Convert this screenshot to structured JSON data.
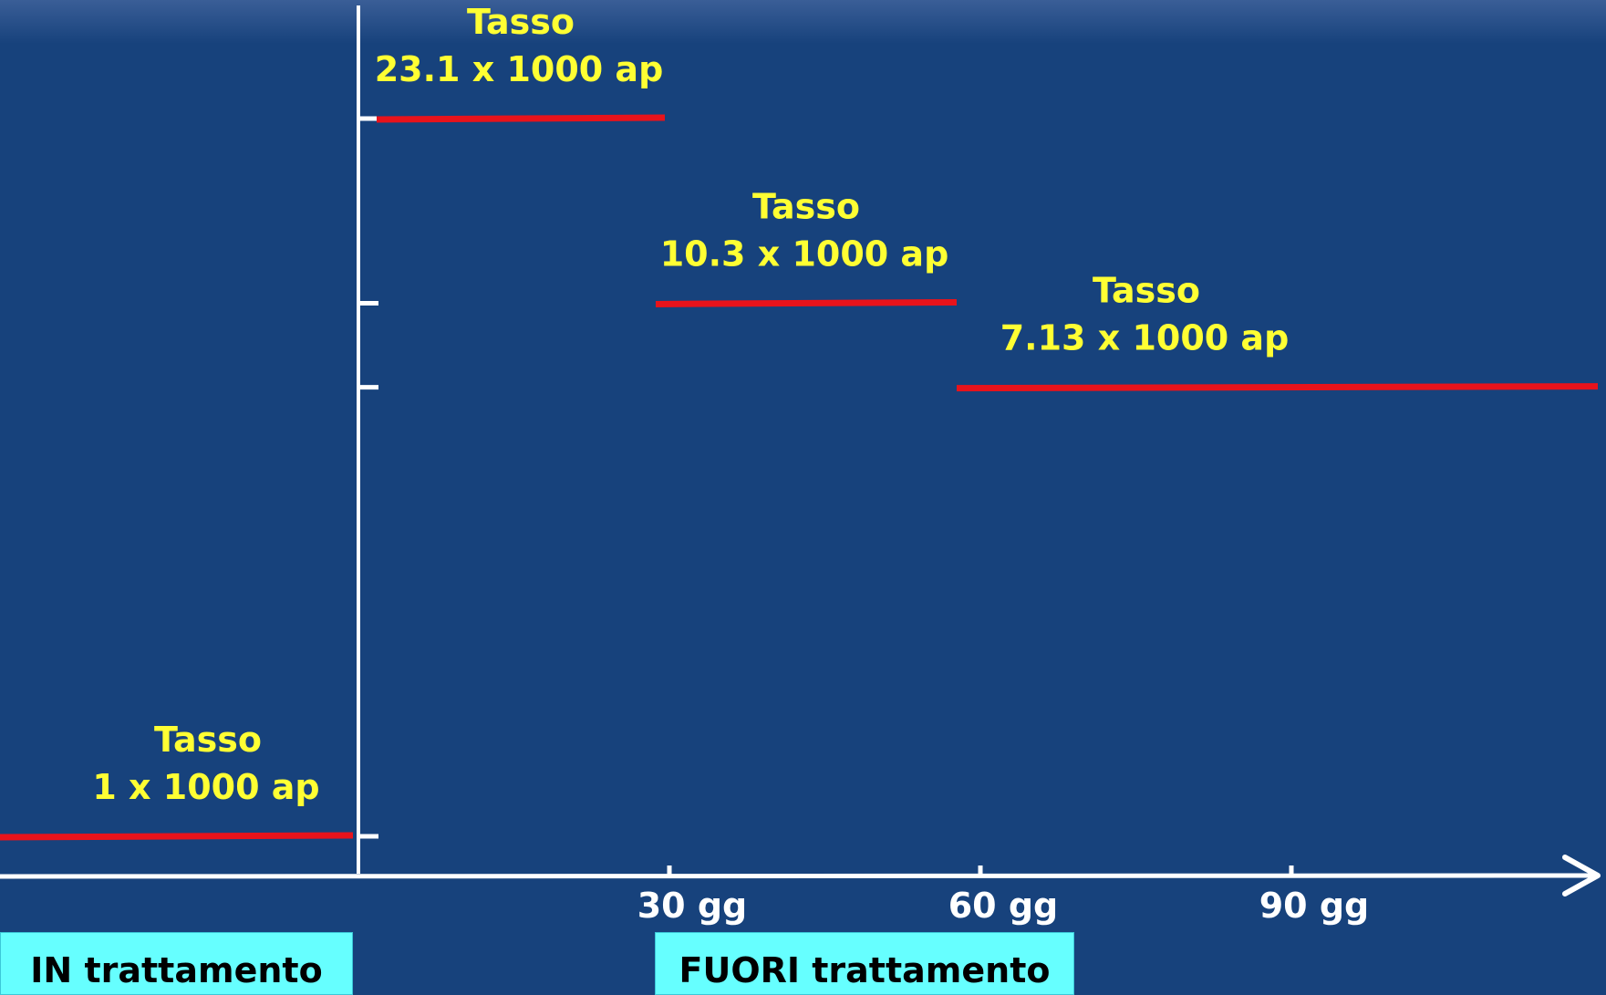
{
  "chart_data": {
    "type": "step",
    "x_unit": "gg",
    "x_ticks": [
      {
        "value": 30,
        "label": "30 gg"
      },
      {
        "value": 60,
        "label": "60 gg"
      },
      {
        "value": 90,
        "label": "90 gg"
      }
    ],
    "rate_unit": "x 1000 ap",
    "segments": [
      {
        "phase": "IN trattamento",
        "x": [
          -35,
          0
        ],
        "rate": 1,
        "label_title": "Tasso",
        "label_value": "1 x 1000 ap"
      },
      {
        "phase": "FUORI trattamento",
        "x": [
          0,
          30
        ],
        "rate": 23.1,
        "label_title": "Tasso",
        "label_value": "23.1 x 1000 ap"
      },
      {
        "phase": "FUORI trattamento",
        "x": [
          30,
          60
        ],
        "rate": 10.3,
        "label_title": "Tasso",
        "label_value": "10.3 x 1000 ap"
      },
      {
        "phase": "FUORI trattamento",
        "x": [
          60,
          120
        ],
        "rate": 7.13,
        "label_title": "Tasso",
        "label_value": "7.13 x 1000 ap"
      }
    ],
    "y_ticks": [
      1,
      7.13,
      10.3,
      23.1
    ],
    "colors": {
      "background": "#17427C",
      "segment": "#E8131B",
      "axis": "#FFFFFF",
      "label": "#FFFF33",
      "box": "#66FFFF"
    }
  },
  "phases": {
    "in_label": "IN trattamento",
    "out_label": "FUORI trattamento"
  }
}
